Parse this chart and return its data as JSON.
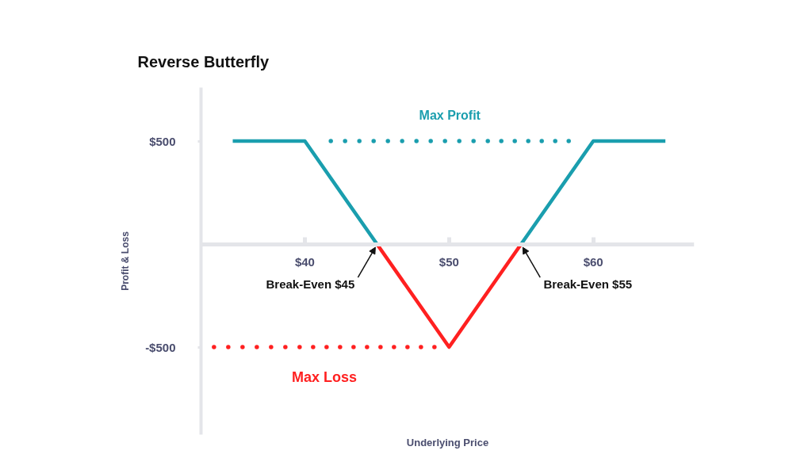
{
  "chart_data": {
    "type": "line",
    "title": "Reverse Butterfly",
    "xlabel": "Underlying Price",
    "ylabel": "Profit & Loss",
    "x": [
      35,
      40,
      45,
      50,
      55,
      60,
      65
    ],
    "series": [
      {
        "color": "#1a9eae",
        "values": [
          500,
          500,
          0,
          null,
          0,
          500,
          500
        ]
      },
      {
        "color": "#ff2020",
        "values": [
          null,
          null,
          0,
          -500,
          0,
          null,
          null
        ]
      },
      {
        "name": "Max Profit",
        "color": "#1a9eae",
        "x": [
          41.8,
          58.3
        ],
        "values": [
          500,
          500
        ],
        "line_style": "dotted"
      },
      {
        "name": "Max Loss",
        "color": "#ff2020",
        "x": [
          33.7,
          49
        ],
        "values": [
          -500,
          -500
        ],
        "line_style": "dotted"
      }
    ],
    "xlim": [
      32.8,
      67
    ],
    "ylim": [
      -925,
      760
    ],
    "xticks": [
      {
        "value": 40,
        "label": "$40"
      },
      {
        "value": 50,
        "label": "$50"
      },
      {
        "value": 60,
        "label": "$60"
      }
    ],
    "yticks": [
      {
        "value": -500,
        "label": "-$500"
      },
      {
        "value": 500,
        "label": "$500"
      }
    ],
    "annotations": [
      {
        "text": "Break-Even $45",
        "x": 45,
        "y": 0
      },
      {
        "text": "Break-Even $55",
        "x": 55,
        "y": 0
      }
    ],
    "line_style": "solid"
  }
}
